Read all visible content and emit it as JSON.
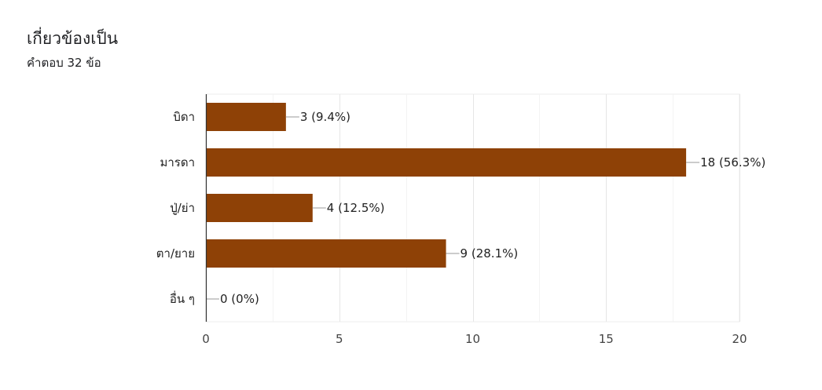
{
  "header": {
    "title": "เกี่ยวข้องเป็น",
    "response_count": "คำตอบ 32 ข้อ"
  },
  "chart_data": {
    "type": "bar",
    "orientation": "horizontal",
    "title": "เกี่ยวข้องเป็น",
    "subtitle": "คำตอบ 32 ข้อ",
    "categories": [
      "บิดา",
      "มารดา",
      "ปู่/ย่า",
      "ตา/ยาย",
      "อื่น ๆ"
    ],
    "values": [
      3,
      18,
      4,
      9,
      0
    ],
    "data_labels": [
      "3 (9.4%)",
      "18 (56.3%)",
      "4 (12.5%)",
      "9 (28.1%)",
      "0 (0%)"
    ],
    "xlim": [
      0,
      20
    ],
    "x_ticks": [
      0,
      5,
      10,
      15,
      20
    ],
    "grid": true,
    "colors": {
      "bar": "#8e4106",
      "grid": "#ececec",
      "axis": "#333333",
      "leader": "#999999"
    }
  }
}
